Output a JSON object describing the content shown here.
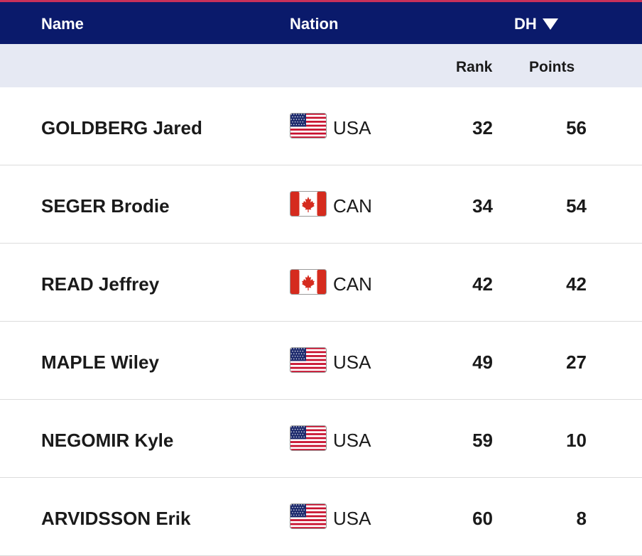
{
  "header": {
    "name_label": "Name",
    "nation_label": "Nation",
    "discipline_label": "DH",
    "sort_icon": "triangle-down-icon"
  },
  "subheader": {
    "rank_label": "Rank",
    "points_label": "Points"
  },
  "colors": {
    "header_bg": "#0a1a6b",
    "accent": "#c8315a",
    "subheader_bg": "#e6e9f3"
  },
  "rows": [
    {
      "name": "GOLDBERG Jared",
      "flag": "usa-flag-icon",
      "nation": "USA",
      "rank": "32",
      "points": "56"
    },
    {
      "name": "SEGER Brodie",
      "flag": "canada-flag-icon",
      "nation": "CAN",
      "rank": "34",
      "points": "54"
    },
    {
      "name": "READ Jeffrey",
      "flag": "canada-flag-icon",
      "nation": "CAN",
      "rank": "42",
      "points": "42"
    },
    {
      "name": "MAPLE Wiley",
      "flag": "usa-flag-icon",
      "nation": "USA",
      "rank": "49",
      "points": "27"
    },
    {
      "name": "NEGOMIR Kyle",
      "flag": "usa-flag-icon",
      "nation": "USA",
      "rank": "59",
      "points": "10"
    },
    {
      "name": "ARVIDSSON Erik",
      "flag": "usa-flag-icon",
      "nation": "USA",
      "rank": "60",
      "points": "8"
    }
  ]
}
